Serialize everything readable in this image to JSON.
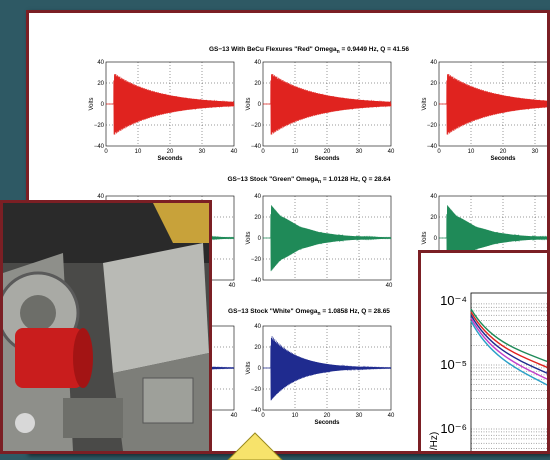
{
  "chart_data": [
    {
      "type": "line",
      "group": "red",
      "title_main": "GS−13 With BeCu Flexures \"Red\" Omega",
      "title_sub": "n",
      "title_tail": " = 0.9449 Hz, Q = 41.56",
      "ylabel": "Volts",
      "xlabel": "Seconds",
      "xlim": [
        0,
        40
      ],
      "ylim": [
        -40,
        40
      ],
      "xticks": [
        "0",
        "10",
        "20",
        "30",
        "40"
      ],
      "yticks": [
        "40",
        "20",
        "0",
        "−20",
        "−40"
      ],
      "color": "#e0231f",
      "freq_hz": 0.9449,
      "q": 41.56,
      "amplitude": 30,
      "panels": 3
    },
    {
      "type": "line",
      "group": "green",
      "title_main": "GS−13 Stock \"Green\" Omega",
      "title_sub": "n",
      "title_tail": " = 1.0128 Hz, Q = 28.64",
      "ylabel": "Volts",
      "xlabel": "",
      "xlim": [
        0,
        40
      ],
      "ylim": [
        -40,
        40
      ],
      "xticks": [
        "40",
        "40"
      ],
      "yticks": [
        "40",
        "20",
        "0",
        "−20",
        "−40"
      ],
      "color": "#1f8a58",
      "freq_hz": 1.0128,
      "q": 28.64,
      "amplitude": 32,
      "panels": 3
    },
    {
      "type": "line",
      "group": "white",
      "title_main": "GS−13 Stock \"White\" Omega",
      "title_sub": "n",
      "title_tail": " = 1.0858 Hz, Q = 28.65",
      "ylabel": "Volts",
      "xlabel": "Seconds",
      "xlim": [
        0,
        40
      ],
      "ylim": [
        -40,
        40
      ],
      "xticks": [
        "0",
        "10",
        "20",
        "30",
        "40"
      ],
      "yticks": [
        "40",
        "20",
        "0",
        "−20",
        "−40"
      ],
      "color": "#1f2b8f",
      "freq_hz": 1.0858,
      "q": 28.65,
      "amplitude": 32,
      "panels": 3
    },
    {
      "type": "line",
      "group": "psd",
      "yscale": "log",
      "yticks": [
        "10⁻⁴",
        "10⁻⁵",
        "10⁻⁶"
      ],
      "ylabel_fragment": "/Hz)"
    }
  ]
}
